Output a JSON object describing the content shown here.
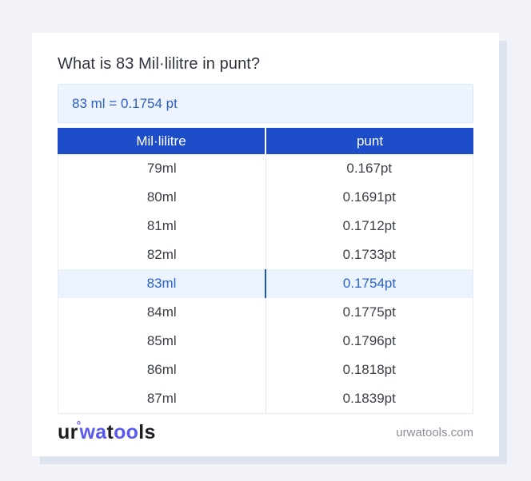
{
  "page": {
    "title": "What is 83 Mil·lilitre in punt?",
    "conversion_result": "83 ml = 0.1754 pt"
  },
  "table": {
    "columns": [
      {
        "label": "Mil·lilitre"
      },
      {
        "label": "punt"
      }
    ],
    "rows": [
      {
        "ml": "79ml",
        "pt": "0.167pt",
        "highlight": false
      },
      {
        "ml": "80ml",
        "pt": "0.1691pt",
        "highlight": false
      },
      {
        "ml": "81ml",
        "pt": "0.1712pt",
        "highlight": false
      },
      {
        "ml": "82ml",
        "pt": "0.1733pt",
        "highlight": false
      },
      {
        "ml": "83ml",
        "pt": "0.1754pt",
        "highlight": true
      },
      {
        "ml": "84ml",
        "pt": "0.1775pt",
        "highlight": false
      },
      {
        "ml": "85ml",
        "pt": "0.1796pt",
        "highlight": false
      },
      {
        "ml": "86ml",
        "pt": "0.1818pt",
        "highlight": false
      },
      {
        "ml": "87ml",
        "pt": "0.1839pt",
        "highlight": false
      }
    ]
  },
  "footer": {
    "logo_parts": {
      "p1": "ur",
      "ring": "°",
      "p2": "wa",
      "p3": "t",
      "p4": "oo",
      "p5": "ls"
    },
    "site": "urwatools.com"
  },
  "colors": {
    "page_background": "#f1f3f8",
    "card_shadow": "#dde3ef",
    "header_bg": "#1e4dc9",
    "result_box_bg": "#edf4fd",
    "result_box_border": "#d9e7f9",
    "accent_text": "#2a60c6",
    "highlight_row_bg": "#eaf3fe",
    "highlight_row_text": "#2c63c9",
    "highlight_divider": "#1d56bb",
    "logo_blue": "#5a59ee",
    "footer_text": "#8a8f9b"
  }
}
